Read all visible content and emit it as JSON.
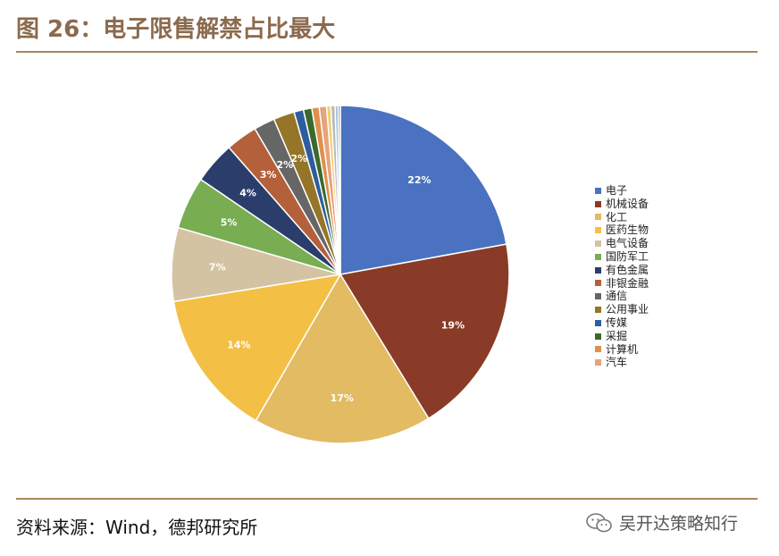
{
  "header": {
    "title": "图 26：电子限售解禁占比最大"
  },
  "footer": {
    "source": "资料来源：Wind，德邦研究所",
    "watermark_text": "吴开达策略知行",
    "watermark_icon": "wechat-icon"
  },
  "chart_data": {
    "type": "pie",
    "title": "",
    "legend_position": "right",
    "slices": [
      {
        "label": "电子",
        "value": 22,
        "display": "22%",
        "color": "#4a72c0"
      },
      {
        "label": "机械设备",
        "value": 19,
        "display": "19%",
        "color": "#8a3b27"
      },
      {
        "label": "化工",
        "value": 17,
        "display": "17%",
        "color": "#e2bb62"
      },
      {
        "label": "医药生物",
        "value": 14,
        "display": "14%",
        "color": "#f3c045"
      },
      {
        "label": "电气设备",
        "value": 7,
        "display": "7%",
        "color": "#d4c3a3"
      },
      {
        "label": "国防军工",
        "value": 5,
        "display": "5%",
        "color": "#78ad52"
      },
      {
        "label": "有色金属",
        "value": 4,
        "display": "4%",
        "color": "#2b3e6b"
      },
      {
        "label": "非银金融",
        "value": 3,
        "display": "3%",
        "color": "#b4603a"
      },
      {
        "label": "通信",
        "value": 2,
        "display": "2%",
        "color": "#666666"
      },
      {
        "label": "公用事业",
        "value": 2,
        "display": "2%",
        "color": "#957527"
      },
      {
        "label": "传媒",
        "value": 0.9,
        "display": "",
        "color": "#2d5d9e"
      },
      {
        "label": "采掘",
        "value": 0.8,
        "display": "",
        "color": "#3c6a2d"
      },
      {
        "label": "计算机",
        "value": 0.7,
        "display": "",
        "color": "#e0904a"
      },
      {
        "label": "汽车",
        "value": 0.7,
        "display": "",
        "color": "#e8a37c"
      },
      {
        "label": "",
        "value": 0.4,
        "display": "",
        "color": "#f2d06a"
      },
      {
        "label": "",
        "value": 0.4,
        "display": "",
        "color": "#b8b8b8"
      },
      {
        "label": "",
        "value": 0.3,
        "display": "",
        "color": "#9ec3e8"
      },
      {
        "label": "",
        "value": 0.2,
        "display": "",
        "color": "#8f7f5c"
      }
    ]
  }
}
